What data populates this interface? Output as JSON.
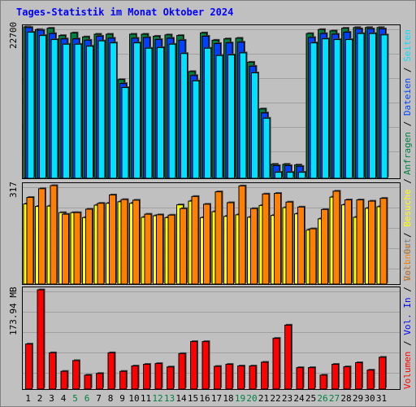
{
  "title": "Tages-Statistik im Monat Oktober 2024",
  "colors": {
    "background": "#c0c0c0",
    "title": "#0000ff",
    "anfragen": "#008040",
    "dateien": "#0040ff",
    "seiten": "#00e0ff",
    "besuche": "#ffff00",
    "rechner": "#ff8000",
    "vol_out": "#808080",
    "vol_in": "#0000ff",
    "volumen": "#ff0000",
    "weekend": "#008040",
    "weekday": "#000000"
  },
  "chart_data": [
    {
      "type": "bar",
      "ylabel": "22700",
      "categories": [
        "1",
        "2",
        "3",
        "4",
        "5",
        "6",
        "7",
        "8",
        "9",
        "10",
        "11",
        "12",
        "13",
        "14",
        "15",
        "16",
        "17",
        "18",
        "19",
        "20",
        "21",
        "22",
        "23",
        "24",
        "25",
        "26",
        "27",
        "28",
        "29",
        "30",
        "31"
      ],
      "weekend_days": [
        "5",
        "6",
        "12",
        "13",
        "19",
        "20",
        "26",
        "27"
      ],
      "ylim": [
        0,
        22700
      ],
      "legend": [
        "Anfragen",
        "Dateien",
        "Seiten"
      ],
      "series": [
        {
          "name": "Anfragen",
          "values": [
            22700,
            22300,
            22500,
            21400,
            21800,
            21200,
            21600,
            21600,
            14800,
            21600,
            21600,
            21300,
            21500,
            21400,
            16000,
            21800,
            20700,
            20900,
            21000,
            17400,
            10400,
            2100,
            2100,
            2000,
            21700,
            22300,
            22100,
            22500,
            22600,
            22600,
            22600
          ]
        },
        {
          "name": "Dateien",
          "values": [
            22600,
            22200,
            21700,
            20900,
            20900,
            20700,
            21300,
            21000,
            14200,
            21000,
            21100,
            20800,
            21000,
            20700,
            15400,
            21300,
            20200,
            20300,
            20400,
            16800,
            9800,
            1900,
            1900,
            1800,
            21100,
            21700,
            21600,
            21900,
            22400,
            22400,
            22400
          ]
        },
        {
          "name": "Seiten",
          "values": [
            21900,
            21400,
            20800,
            20100,
            20100,
            19800,
            20600,
            20300,
            13600,
            20300,
            19500,
            19600,
            20100,
            18700,
            14600,
            19500,
            18400,
            18500,
            18800,
            15800,
            9000,
            900,
            900,
            900,
            20300,
            20900,
            20800,
            20800,
            21700,
            21700,
            21500
          ]
        }
      ]
    },
    {
      "type": "bar",
      "ylabel": "317",
      "categories": [
        "1",
        "2",
        "3",
        "4",
        "5",
        "6",
        "7",
        "8",
        "9",
        "10",
        "11",
        "12",
        "13",
        "14",
        "15",
        "16",
        "17",
        "18",
        "19",
        "20",
        "21",
        "22",
        "23",
        "24",
        "25",
        "26",
        "27",
        "28",
        "29",
        "30",
        "31"
      ],
      "ylim": [
        0,
        317
      ],
      "legend": [
        "Besuche",
        "Rechner"
      ],
      "series": [
        {
          "name": "Besuche",
          "values": [
            258,
            250,
            251,
            230,
            230,
            214,
            254,
            260,
            265,
            260,
            215,
            220,
            214,
            255,
            267,
            214,
            233,
            218,
            223,
            215,
            253,
            221,
            246,
            226,
            174,
            210,
            280,
            255,
            215,
            244,
            249
          ]
        },
        {
          "name": "Rechner",
          "values": [
            279,
            307,
            317,
            225,
            230,
            241,
            260,
            287,
            272,
            270,
            225,
            223,
            222,
            243,
            282,
            257,
            297,
            262,
            316,
            243,
            290,
            292,
            264,
            248,
            178,
            240,
            299,
            271,
            271,
            267,
            276
          ]
        }
      ]
    },
    {
      "type": "bar",
      "ylabel": "173.94 MB",
      "categories": [
        "1",
        "2",
        "3",
        "4",
        "5",
        "6",
        "7",
        "8",
        "9",
        "10",
        "11",
        "12",
        "13",
        "14",
        "15",
        "16",
        "17",
        "18",
        "19",
        "20",
        "21",
        "22",
        "23",
        "24",
        "25",
        "26",
        "27",
        "28",
        "29",
        "30",
        "31"
      ],
      "ylim": [
        0,
        173.94
      ],
      "legend": [
        "Volumen",
        "Vol. In",
        "Vol. Out"
      ],
      "series": [
        {
          "name": "Volumen",
          "values": [
            78.9,
            173.9,
            63.6,
            31.1,
            49.9,
            24.5,
            27.4,
            63.6,
            31.1,
            40.5,
            43.4,
            44.8,
            38.8,
            62.2,
            83.2,
            83.2,
            39.8,
            43.4,
            40.5,
            40.5,
            47.0,
            88.9,
            112.1,
            37.6,
            37.6,
            24.5,
            43.4,
            39.1,
            46.3,
            33.3,
            55.7
          ]
        }
      ]
    }
  ]
}
